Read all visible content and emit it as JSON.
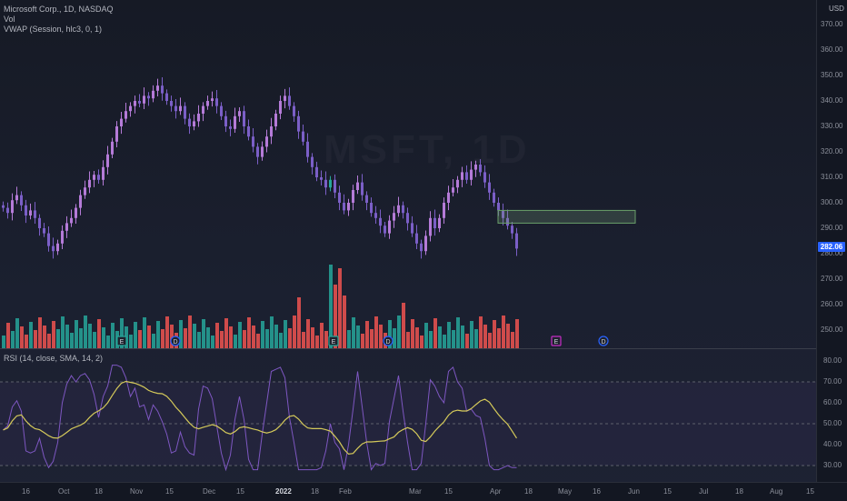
{
  "symbol": {
    "title": "Microsoft Corp., 1D, NASDAQ",
    "volume_label": "Vol",
    "vwap_label": "VWAP (Session, hlc3, 0, 1)",
    "watermark": "MSFT, 1D",
    "currency": "USD",
    "last_price": "282.06"
  },
  "rsi": {
    "label": "RSI (14, close, SMA, 14, 2)",
    "levels": [
      70,
      50,
      30
    ]
  },
  "price_axis_labels": [
    "370.00",
    "360.00",
    "350.00",
    "340.00",
    "330.00",
    "320.00",
    "310.00",
    "300.00",
    "290.00",
    "280.00",
    "270.00",
    "260.00",
    "250.00"
  ],
  "rsi_axis_labels": [
    "80.00",
    "70.00",
    "60.00",
    "50.00",
    "40.00",
    "30.00"
  ],
  "time_labels": [
    {
      "text": "16",
      "bold": false
    },
    {
      "text": "Oct",
      "bold": false
    },
    {
      "text": "18",
      "bold": false
    },
    {
      "text": "Nov",
      "bold": false
    },
    {
      "text": "15",
      "bold": false
    },
    {
      "text": "Dec",
      "bold": false
    },
    {
      "text": "15",
      "bold": false
    },
    {
      "text": "2022",
      "bold": true
    },
    {
      "text": "18",
      "bold": false
    },
    {
      "text": "Feb",
      "bold": false
    },
    {
      "text": "Mar",
      "bold": false
    },
    {
      "text": "15",
      "bold": false
    },
    {
      "text": "Apr",
      "bold": false
    },
    {
      "text": "18",
      "bold": false
    },
    {
      "text": "May",
      "bold": false
    },
    {
      "text": "16",
      "bold": false
    },
    {
      "text": "Jun",
      "bold": false
    },
    {
      "text": "15",
      "bold": false
    },
    {
      "text": "Jul",
      "bold": false
    },
    {
      "text": "18",
      "bold": false
    },
    {
      "text": "Aug",
      "bold": false
    },
    {
      "text": "15",
      "bold": false
    }
  ],
  "event_markers": [
    {
      "letter": "E",
      "kind": "earnings"
    },
    {
      "letter": "D",
      "kind": "dividend"
    },
    {
      "letter": "E",
      "kind": "earnings"
    },
    {
      "letter": "D",
      "kind": "dividend"
    },
    {
      "letter": "E",
      "kind": "earnings-upcoming"
    },
    {
      "letter": "D",
      "kind": "dividend-upcoming"
    }
  ],
  "zone": {
    "top_price": 297,
    "bottom_price": 292
  },
  "colors": {
    "up": "#b57bd8",
    "down": "#7b5fc7",
    "up_alt": "#26a69a",
    "vol_up": "#26a69a",
    "vol_down": "#ef5350",
    "ma": "#d4c95a",
    "rsi": "#7e57c2",
    "zone_border": "#6aa06a",
    "last_price": "#2962ff"
  },
  "chart_data": {
    "type": "candlestick",
    "title": "Microsoft Corp., 1D, NASDAQ",
    "ylim": [
      245,
      375
    ],
    "closes": [
      298,
      296,
      301,
      303,
      299,
      295,
      297,
      294,
      290,
      288,
      283,
      281,
      284,
      289,
      292,
      294,
      298,
      303,
      306,
      309,
      311,
      309,
      314,
      319,
      324,
      330,
      333,
      336,
      338,
      340,
      339,
      342,
      341,
      344,
      346,
      343,
      340,
      338,
      336,
      338,
      333,
      330,
      332,
      335,
      338,
      340,
      341,
      338,
      334,
      330,
      329,
      334,
      336,
      330,
      326,
      322,
      318,
      322,
      326,
      330,
      335,
      340,
      342,
      338,
      334,
      328,
      324,
      318,
      314,
      310,
      309,
      306,
      309,
      304,
      300,
      297,
      300,
      305,
      308,
      303,
      300,
      296,
      294,
      291,
      288,
      293,
      296,
      299,
      296,
      292,
      288,
      284,
      281,
      287,
      294,
      290,
      294,
      300,
      304,
      306,
      309,
      312,
      309,
      313,
      315,
      312,
      308,
      304,
      300,
      297,
      294,
      291,
      288,
      282
    ]
  }
}
